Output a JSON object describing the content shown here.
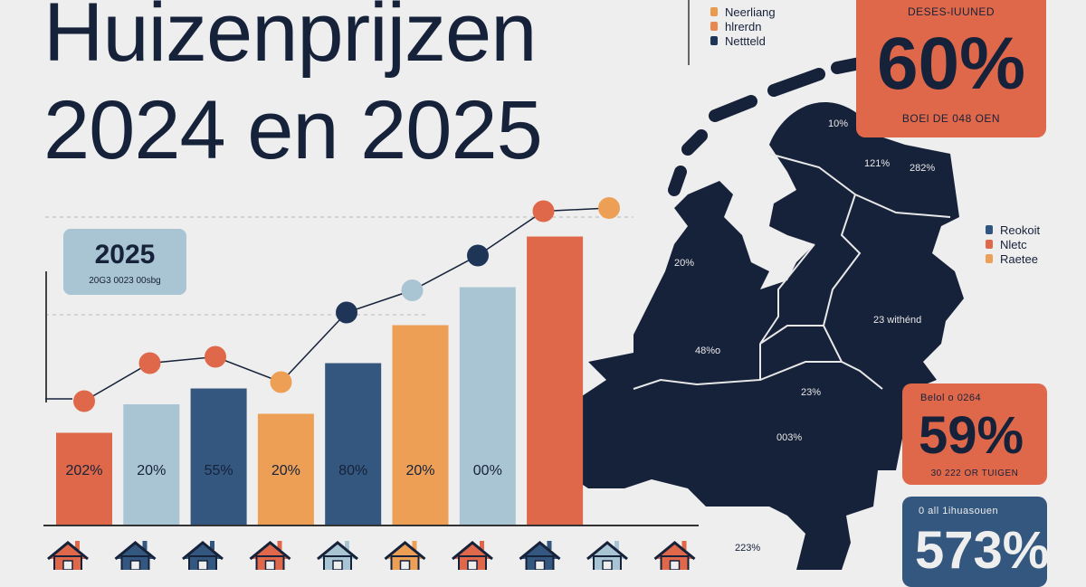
{
  "title_line1": "Huizenprijzen",
  "title_line2": "2024 en 2025",
  "legend_top": [
    {
      "label": "Neerliang",
      "color": "#e89a4f"
    },
    {
      "label": "hlrerdn",
      "color": "#e8874f"
    },
    {
      "label": "Nettteld",
      "color": "#1e3557"
    }
  ],
  "legend_right": [
    {
      "label": "Reokoit",
      "color": "#2f5580"
    },
    {
      "label": "Nletc",
      "color": "#e0684a"
    },
    {
      "label": "Raetee",
      "color": "#eda055"
    }
  ],
  "box_2025": {
    "year": "2025",
    "sub": "20G3 0023 00sbg"
  },
  "cards": [
    {
      "top": "DESES-lUUNED",
      "big": "60%",
      "bottom": "BOEl DE 048 OEN",
      "color": "#e0684a"
    },
    {
      "top": "Belol o 0264",
      "big": "59%",
      "bottom": "30 222 OR TUIGEN",
      "color": "#e0684a"
    },
    {
      "top": "0 all 1ihuasouen",
      "big": "573%",
      "bottom": "",
      "color": "#34577f"
    }
  ],
  "map_labels": [
    "10%",
    "121%",
    "282%",
    "20%",
    "23 withénd",
    "48%o",
    "23%",
    "003%",
    "223%"
  ],
  "colors": {
    "navy": "#16213a",
    "red": "#e0684a",
    "orange": "#eda055",
    "lightblue": "#a9c4d3",
    "blue": "#34577f"
  },
  "chart_data": {
    "type": "bar",
    "title": "",
    "xlabel": "",
    "ylabel": "",
    "ylim": [
      0,
      100
    ],
    "grid": false,
    "bars": [
      {
        "value": 29,
        "label": "202%",
        "color": "#e0684a"
      },
      {
        "value": 38,
        "label": "20%",
        "color": "#a9c4d3"
      },
      {
        "value": 43,
        "label": "55%",
        "color": "#34577f"
      },
      {
        "value": 35,
        "label": "20%",
        "color": "#eda055"
      },
      {
        "value": 51,
        "label": "80%",
        "color": "#34577f"
      },
      {
        "value": 63,
        "label": "20%",
        "color": "#eda055"
      },
      {
        "value": 75,
        "label": "00%",
        "color": "#a9c4d3"
      },
      {
        "value": 91,
        "label": "",
        "color": "#e0684a"
      }
    ],
    "line": {
      "values": [
        39,
        51,
        53,
        45,
        67,
        74,
        85,
        99,
        100
      ],
      "point_colors": [
        "#e0684a",
        "#e0684a",
        "#e0684a",
        "#eda055",
        "#1e3557",
        "#a9c4d3",
        "#1e3557",
        "#e0684a",
        "#eda055"
      ]
    },
    "houses": [
      "#e0684a",
      "#34577f",
      "#34577f",
      "#e0684a",
      "#a9c4d3",
      "#eda055",
      "#e0684a",
      "#34577f",
      "#a9c4d3",
      "#e0684a"
    ]
  }
}
